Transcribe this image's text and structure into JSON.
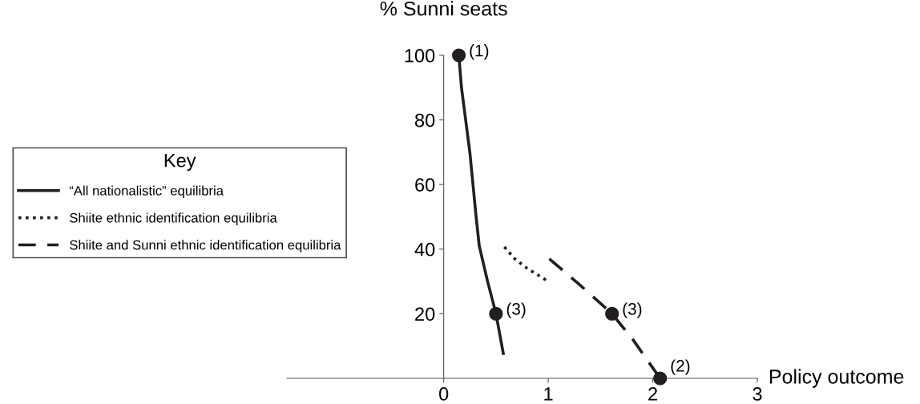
{
  "chart_data": {
    "type": "line",
    "xlabel": "Policy outcome",
    "ylabel": "% Sunni seats",
    "legend_title": "Key",
    "xlim": [
      -1.5,
      3
    ],
    "ylim": [
      0,
      100
    ],
    "xticks": [
      0,
      1,
      2,
      3
    ],
    "yticks": [
      20,
      40,
      60,
      80,
      100
    ],
    "grid": false,
    "legend": "left",
    "series": [
      {
        "name": "“All nationalistic” equilibria",
        "line_style": "solid",
        "color": "#231f20",
        "x": [
          0.145,
          0.17,
          0.21,
          0.25,
          0.28,
          0.31,
          0.34,
          0.42,
          0.5,
          0.57
        ],
        "values": [
          100,
          90,
          80,
          70,
          60,
          50,
          41,
          30,
          20,
          7.7
        ]
      },
      {
        "name": "Shiite ethnic identification equilibria",
        "line_style": "dotted",
        "color": "#231f20",
        "x": [
          0.58,
          0.68,
          0.8,
          0.9,
          1.0
        ],
        "values": [
          40.7,
          37,
          34,
          32,
          30
        ]
      },
      {
        "name": "Shiite and Sunni ethnic identification equilibria",
        "line_style": "dashed",
        "color": "#231f20",
        "x": [
          1.01,
          1.3,
          1.61,
          1.81,
          2.07
        ],
        "values": [
          37,
          29,
          20,
          12,
          0
        ]
      },
      {
        "type": "scatter",
        "marker": "circle",
        "color": "#231f20",
        "x": [
          0.145,
          0.5,
          1.61,
          2.07
        ],
        "values": [
          100,
          20,
          20,
          0
        ]
      }
    ],
    "annotations": [
      {
        "text": "(1)",
        "x": 0.145,
        "y": 100
      },
      {
        "text": "(3)",
        "x": 0.5,
        "y": 20
      },
      {
        "text": "(3)",
        "x": 1.61,
        "y": 20
      },
      {
        "text": "(2)",
        "x": 2.07,
        "y": 0
      }
    ]
  }
}
